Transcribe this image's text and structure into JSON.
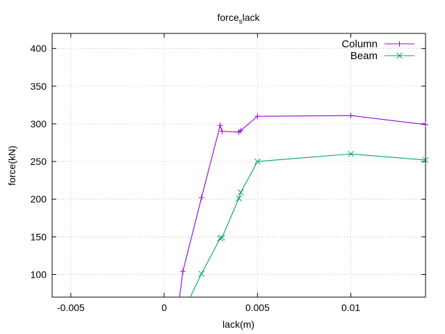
{
  "chart_data": {
    "type": "line",
    "title": "force",
    "title_subscript": "s",
    "title_suffix": "lack",
    "xlabel": "lack(m)",
    "ylabel": "force(kN)",
    "xlim": [
      -0.006,
      0.014
    ],
    "ylim": [
      70,
      420
    ],
    "xticks": [
      -0.005,
      0,
      0.005,
      0.01
    ],
    "xtick_labels": [
      "-0.005",
      "0",
      "0.005",
      "0.01"
    ],
    "yticks": [
      100,
      150,
      200,
      250,
      300,
      350,
      400
    ],
    "ytick_labels": [
      "100",
      "150",
      "200",
      "250",
      "300",
      "350",
      "400"
    ],
    "grid": true,
    "legend_position": "top-right",
    "series": [
      {
        "name": "Column",
        "color": "#9400d3",
        "marker": "plus",
        "points": [
          [
            0.0008,
            65
          ],
          [
            0.001,
            104
          ],
          [
            0.002,
            202
          ],
          [
            0.003,
            298
          ],
          [
            0.0031,
            290
          ],
          [
            0.004,
            289
          ],
          [
            0.0041,
            291
          ],
          [
            0.005,
            310
          ],
          [
            0.01,
            311
          ],
          [
            0.014,
            299
          ]
        ]
      },
      {
        "name": "Beam",
        "color": "#009e73",
        "marker": "cross",
        "points": [
          [
            0.0013,
            65
          ],
          [
            0.002,
            101
          ],
          [
            0.003,
            148
          ],
          [
            0.0031,
            149
          ],
          [
            0.004,
            201
          ],
          [
            0.0041,
            209
          ],
          [
            0.005,
            250
          ],
          [
            0.01,
            260
          ],
          [
            0.014,
            252
          ]
        ]
      }
    ]
  }
}
